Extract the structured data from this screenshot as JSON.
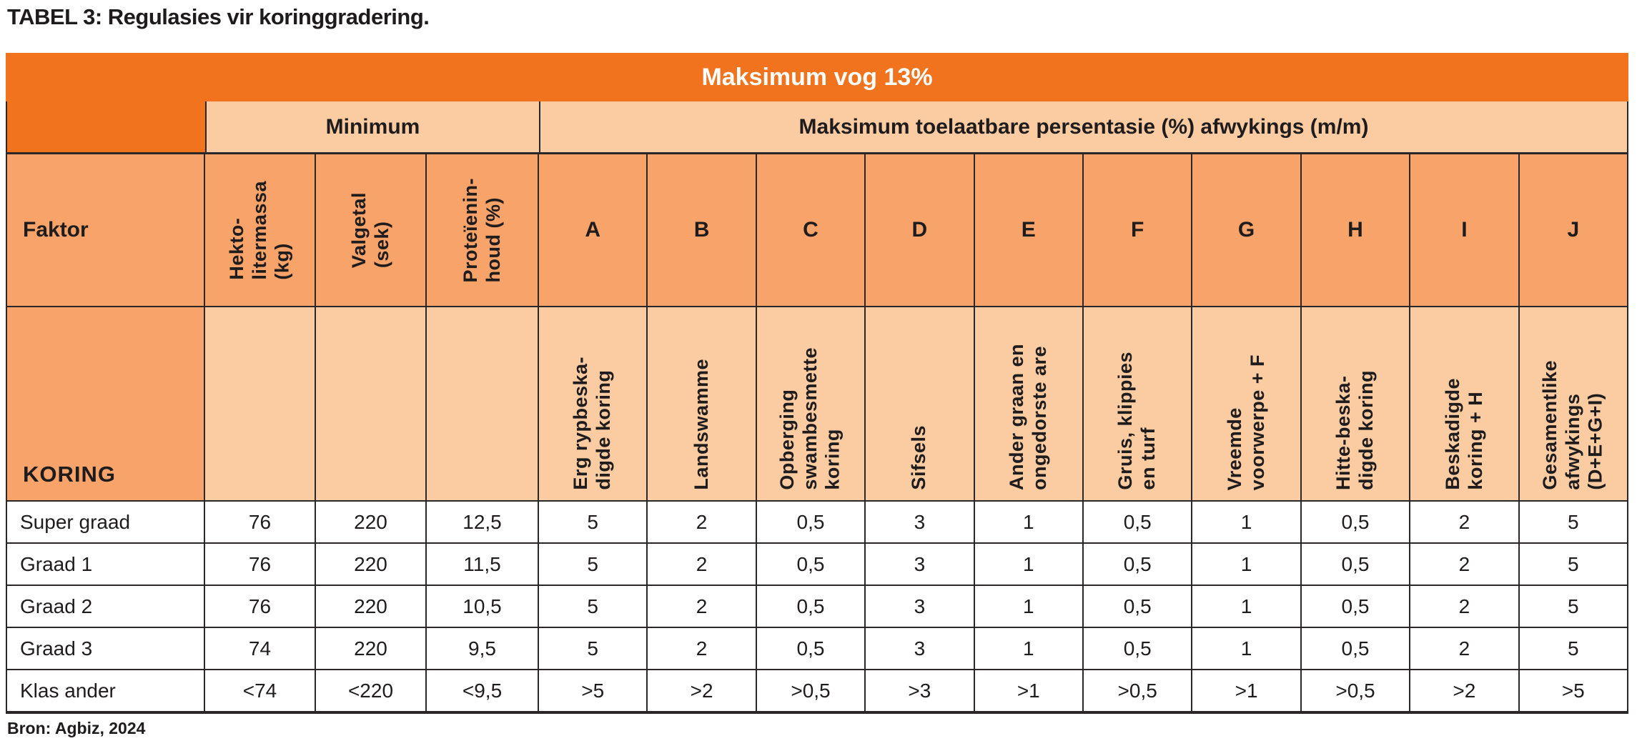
{
  "page": {
    "title": "TABEL 3: Regulasies vir koringgradering.",
    "source": "Bron: Agbiz, 2024"
  },
  "colors": {
    "dark_orange": "#F1731E",
    "medium_orange": "#F7A369",
    "light_peach": "#FBCBA2",
    "grid_line": "#2B2728",
    "text_dark": "#1F1C1D",
    "band_text_white": "#FFFFFF"
  },
  "table": {
    "moisture_header": "Maksimum vog 13%",
    "minimum_header": "Minimum",
    "deviations_header": "Maksimum toelaatbare persentasie (%) afwykings (m/m)",
    "factor_label": "Faktor",
    "commodity_label": "KORING",
    "minimum_columns": [
      "Hekto-\nlitermassa\n(kg)",
      "Valgetal\n(sek)",
      "Proteïenin-\nhoud (%)"
    ],
    "deviation_letters": [
      "A",
      "B",
      "C",
      "D",
      "E",
      "F",
      "G",
      "H",
      "I",
      "J"
    ],
    "deviation_descriptions": [
      "Erg rypbeska-\ndigde koring",
      "Landswamme",
      "Opberging\nswambesmette\nkoring",
      "Sifsels",
      "Ander graan en\nongedorste are",
      "Gruis, klippies\nen turf",
      "Vreemde\nvoorwerpe + F",
      "Hitte-beska-\ndigde koring",
      "Beskadigde\nkoring + H",
      "Gesamentlike\nafwykings\n(D+E+G+I)"
    ],
    "grade_rows": [
      {
        "label": "Super graad",
        "values": [
          "76",
          "220",
          "12,5",
          "5",
          "2",
          "0,5",
          "3",
          "1",
          "0,5",
          "1",
          "0,5",
          "2",
          "5"
        ]
      },
      {
        "label": "Graad 1",
        "values": [
          "76",
          "220",
          "11,5",
          "5",
          "2",
          "0,5",
          "3",
          "1",
          "0,5",
          "1",
          "0,5",
          "2",
          "5"
        ]
      },
      {
        "label": "Graad 2",
        "values": [
          "76",
          "220",
          "10,5",
          "5",
          "2",
          "0,5",
          "3",
          "1",
          "0,5",
          "1",
          "0,5",
          "2",
          "5"
        ]
      },
      {
        "label": "Graad 3",
        "values": [
          "74",
          "220",
          "9,5",
          "5",
          "2",
          "0,5",
          "3",
          "1",
          "0,5",
          "1",
          "0,5",
          "2",
          "5"
        ]
      },
      {
        "label": "Klas ander",
        "values": [
          "<74",
          "<220",
          "<9,5",
          ">5",
          ">2",
          ">0,5",
          ">3",
          ">1",
          ">0,5",
          ">1",
          ">0,5",
          ">2",
          ">5"
        ]
      }
    ]
  }
}
